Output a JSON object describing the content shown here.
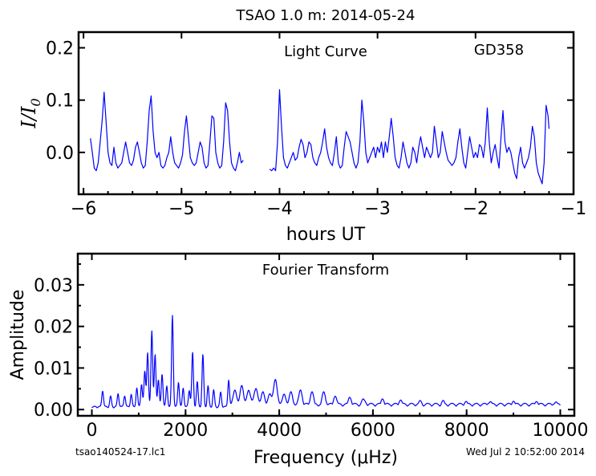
{
  "figure": {
    "title": "TSAO 1.0 m:  2014-05-24",
    "footer_left": "tsao140524-17.lc1",
    "footer_right": "Wed Jul  2 10:52:00 2014"
  },
  "chart_data": [
    {
      "type": "line",
      "title": "Light Curve",
      "annotation": "GD358",
      "xlabel": "hours UT",
      "ylabel": "I/I0",
      "xlim": [
        -6.05,
        -1.0
      ],
      "ylim": [
        -0.08,
        0.23
      ],
      "xticks": [
        -6,
        -5,
        -4,
        -3,
        -2,
        -1
      ],
      "xtick_labels": [
        "−6",
        "−5",
        "−4",
        "−3",
        "−2",
        "−1"
      ],
      "yticks": [
        0.0,
        0.1,
        0.2
      ],
      "ytick_labels": [
        "0.0",
        "0.1",
        "0.2"
      ],
      "series_color": "#0000ff",
      "series": [
        {
          "x": [
            -5.93,
            -5.91,
            -5.89,
            -5.87,
            -5.85,
            -5.83,
            -5.81,
            -5.79,
            -5.77,
            -5.75,
            -5.73,
            -5.71,
            -5.69,
            -5.67,
            -5.65,
            -5.63,
            -5.61,
            -5.59,
            -5.57,
            -5.55,
            -5.53,
            -5.51,
            -5.49,
            -5.47,
            -5.45,
            -5.43,
            -5.41,
            -5.39,
            -5.37,
            -5.35,
            -5.33,
            -5.31,
            -5.29,
            -5.27,
            -5.25,
            -5.23,
            -5.21,
            -5.19,
            -5.17,
            -5.15,
            -5.13,
            -5.11,
            -5.09,
            -5.07,
            -5.05,
            -5.03,
            -5.01,
            -4.99,
            -4.97,
            -4.95,
            -4.93,
            -4.91,
            -4.89,
            -4.87,
            -4.85,
            -4.83,
            -4.81,
            -4.79,
            -4.77,
            -4.75,
            -4.73,
            -4.71,
            -4.69,
            -4.67,
            -4.65,
            -4.63,
            -4.61,
            -4.59,
            -4.57,
            -4.55,
            -4.53,
            -4.51,
            -4.49,
            -4.47,
            -4.45,
            -4.43,
            -4.41,
            -4.39,
            -4.37
          ],
          "y": [
            0.027,
            0.0,
            -0.03,
            -0.035,
            -0.02,
            0.02,
            0.06,
            0.115,
            0.06,
            0.0,
            -0.02,
            -0.025,
            0.01,
            -0.02,
            -0.03,
            -0.025,
            -0.02,
            0.0,
            0.02,
            0.0,
            -0.02,
            -0.025,
            -0.015,
            0.01,
            0.02,
            0.0,
            -0.02,
            -0.03,
            -0.025,
            0.02,
            0.08,
            0.108,
            0.04,
            0.0,
            -0.01,
            0.0,
            -0.025,
            -0.03,
            -0.025,
            -0.01,
            0.0,
            0.03,
            0.0,
            -0.02,
            -0.025,
            -0.03,
            -0.02,
            -0.005,
            0.04,
            0.07,
            0.03,
            -0.01,
            -0.02,
            -0.025,
            -0.02,
            0.0,
            0.02,
            0.01,
            -0.02,
            -0.03,
            -0.025,
            0.02,
            0.07,
            0.065,
            0.0,
            -0.02,
            -0.03,
            -0.025,
            0.02,
            0.095,
            0.08,
            0.02,
            -0.02,
            -0.03,
            -0.035,
            -0.02,
            0.0,
            -0.02,
            -0.015
          ]
        },
        {
          "x": [
            -4.1,
            -4.08,
            -4.06,
            -4.04,
            -4.02,
            -4.0,
            -3.98,
            -3.96,
            -3.94,
            -3.92,
            -3.9,
            -3.88,
            -3.86,
            -3.84,
            -3.82,
            -3.8,
            -3.78,
            -3.76,
            -3.74,
            -3.72,
            -3.7,
            -3.68,
            -3.66,
            -3.64,
            -3.62,
            -3.6,
            -3.58,
            -3.56,
            -3.54,
            -3.52,
            -3.5,
            -3.48,
            -3.46,
            -3.44,
            -3.42,
            -3.4,
            -3.38,
            -3.36,
            -3.34,
            -3.32,
            -3.3,
            -3.28,
            -3.26,
            -3.24,
            -3.22,
            -3.2,
            -3.18,
            -3.16,
            -3.14,
            -3.12,
            -3.1,
            -3.08,
            -3.06,
            -3.04,
            -3.02,
            -3.0,
            -2.98,
            -2.96,
            -2.94,
            -2.92,
            -2.9,
            -2.88,
            -2.86,
            -2.84,
            -2.82,
            -2.8,
            -2.78,
            -2.76,
            -2.74,
            -2.72,
            -2.7,
            -2.68,
            -2.66,
            -2.64,
            -2.62,
            -2.6,
            -2.58,
            -2.56,
            -2.54,
            -2.52,
            -2.5,
            -2.48,
            -2.46,
            -2.44,
            -2.42,
            -2.4,
            -2.38,
            -2.36,
            -2.34,
            -2.32,
            -2.3,
            -2.28,
            -2.26,
            -2.24,
            -2.22,
            -2.2,
            -2.18,
            -2.16,
            -2.14,
            -2.12,
            -2.1,
            -2.08,
            -2.06,
            -2.04,
            -2.02,
            -2.0,
            -1.98,
            -1.96,
            -1.94,
            -1.92,
            -1.9,
            -1.88,
            -1.86,
            -1.84,
            -1.82,
            -1.8,
            -1.78,
            -1.76,
            -1.74,
            -1.72,
            -1.7,
            -1.68,
            -1.66,
            -1.64,
            -1.62,
            -1.6,
            -1.58,
            -1.56,
            -1.54,
            -1.52,
            -1.5,
            -1.48,
            -1.46,
            -1.44,
            -1.42,
            -1.4,
            -1.38,
            -1.36,
            -1.34,
            -1.32,
            -1.3,
            -1.28,
            -1.26,
            -1.25
          ],
          "y": [
            -0.032,
            -0.035,
            -0.03,
            -0.035,
            0.02,
            0.12,
            0.05,
            -0.01,
            -0.025,
            -0.03,
            -0.02,
            -0.01,
            0.0,
            -0.015,
            -0.01,
            0.01,
            0.025,
            0.015,
            -0.01,
            0.0,
            0.02,
            0.015,
            -0.01,
            -0.02,
            -0.025,
            -0.01,
            0.0,
            0.02,
            0.045,
            0.01,
            -0.01,
            -0.02,
            -0.025,
            0.0,
            0.03,
            -0.02,
            -0.03,
            -0.025,
            0.01,
            0.04,
            0.03,
            0.02,
            0.0,
            -0.02,
            -0.03,
            -0.02,
            0.02,
            0.1,
            0.06,
            0.0,
            -0.02,
            -0.01,
            0.0,
            0.01,
            -0.01,
            0.01,
            0.0,
            0.02,
            -0.01,
            0.02,
            0.0,
            0.03,
            0.065,
            0.03,
            -0.01,
            -0.025,
            -0.03,
            -0.01,
            0.02,
            0.0,
            -0.02,
            -0.03,
            -0.02,
            0.01,
            0.0,
            -0.02,
            0.01,
            0.03,
            0.01,
            -0.01,
            0.01,
            0.0,
            -0.01,
            0.0,
            0.05,
            0.02,
            -0.01,
            0.0,
            0.04,
            0.02,
            0.0,
            -0.015,
            -0.02,
            -0.025,
            -0.02,
            -0.01,
            0.02,
            0.045,
            0.01,
            -0.02,
            -0.03,
            0.0,
            0.03,
            0.01,
            -0.01,
            0.0,
            -0.01,
            0.015,
            0.01,
            -0.01,
            0.02,
            0.085,
            0.02,
            -0.02,
            0.0,
            0.015,
            -0.01,
            -0.03,
            0.03,
            0.08,
            0.02,
            0.0,
            0.01,
            0.0,
            -0.02,
            -0.04,
            -0.05,
            -0.01,
            0.01,
            -0.02,
            -0.03,
            -0.02,
            -0.01,
            0.01,
            0.05,
            0.03,
            -0.02,
            -0.04,
            -0.05,
            -0.06,
            -0.02,
            0.09,
            0.07,
            0.045
          ]
        }
      ]
    },
    {
      "type": "line",
      "title": "Fourier Transform",
      "xlabel": "Frequency (μHz)",
      "ylabel": "Amplitude",
      "xlim": [
        -300,
        10300
      ],
      "ylim": [
        -0.0015,
        0.0375
      ],
      "xticks": [
        0,
        2000,
        4000,
        6000,
        8000,
        10000
      ],
      "xtick_labels": [
        "0",
        "2000",
        "4000",
        "6000",
        "8000",
        "10000"
      ],
      "yticks": [
        0.0,
        0.01,
        0.02,
        0.03
      ],
      "ytick_labels": [
        "0.00",
        "0.01",
        "0.02",
        "0.03"
      ],
      "series_color": "#0000ff",
      "peaks": [
        {
          "f": 230,
          "a": 0.004
        },
        {
          "f": 400,
          "a": 0.0025
        },
        {
          "f": 560,
          "a": 0.0032
        },
        {
          "f": 700,
          "a": 0.0028
        },
        {
          "f": 840,
          "a": 0.003
        },
        {
          "f": 960,
          "a": 0.0045
        },
        {
          "f": 1060,
          "a": 0.0055
        },
        {
          "f": 1130,
          "a": 0.0085
        },
        {
          "f": 1190,
          "a": 0.013
        },
        {
          "f": 1280,
          "a": 0.0185
        },
        {
          "f": 1350,
          "a": 0.0125
        },
        {
          "f": 1420,
          "a": 0.0065
        },
        {
          "f": 1500,
          "a": 0.008
        },
        {
          "f": 1600,
          "a": 0.005
        },
        {
          "f": 1720,
          "a": 0.022
        },
        {
          "f": 1850,
          "a": 0.006
        },
        {
          "f": 1950,
          "a": 0.0045
        },
        {
          "f": 2080,
          "a": 0.004
        },
        {
          "f": 2150,
          "a": 0.013
        },
        {
          "f": 2250,
          "a": 0.006
        },
        {
          "f": 2370,
          "a": 0.0125
        },
        {
          "f": 2480,
          "a": 0.005
        },
        {
          "f": 2600,
          "a": 0.004
        },
        {
          "f": 2750,
          "a": 0.0035
        },
        {
          "f": 2920,
          "a": 0.0065
        },
        {
          "f": 3050,
          "a": 0.004
        },
        {
          "f": 3200,
          "a": 0.005
        },
        {
          "f": 3350,
          "a": 0.004
        },
        {
          "f": 3500,
          "a": 0.0045
        },
        {
          "f": 3650,
          "a": 0.0035
        },
        {
          "f": 3800,
          "a": 0.003
        },
        {
          "f": 3920,
          "a": 0.0065
        },
        {
          "f": 4100,
          "a": 0.003
        },
        {
          "f": 4250,
          "a": 0.0035
        },
        {
          "f": 4450,
          "a": 0.004
        },
        {
          "f": 4700,
          "a": 0.0035
        },
        {
          "f": 4950,
          "a": 0.0035
        },
        {
          "f": 5200,
          "a": 0.0025
        },
        {
          "f": 5500,
          "a": 0.0022
        },
        {
          "f": 5800,
          "a": 0.002
        },
        {
          "f": 6200,
          "a": 0.0018
        },
        {
          "f": 6600,
          "a": 0.0016
        },
        {
          "f": 7000,
          "a": 0.0015
        },
        {
          "f": 7500,
          "a": 0.0014
        },
        {
          "f": 8000,
          "a": 0.0013
        },
        {
          "f": 8500,
          "a": 0.0013
        },
        {
          "f": 9000,
          "a": 0.0012
        },
        {
          "f": 9500,
          "a": 0.0012
        },
        {
          "f": 9900,
          "a": 0.0012
        }
      ]
    }
  ]
}
